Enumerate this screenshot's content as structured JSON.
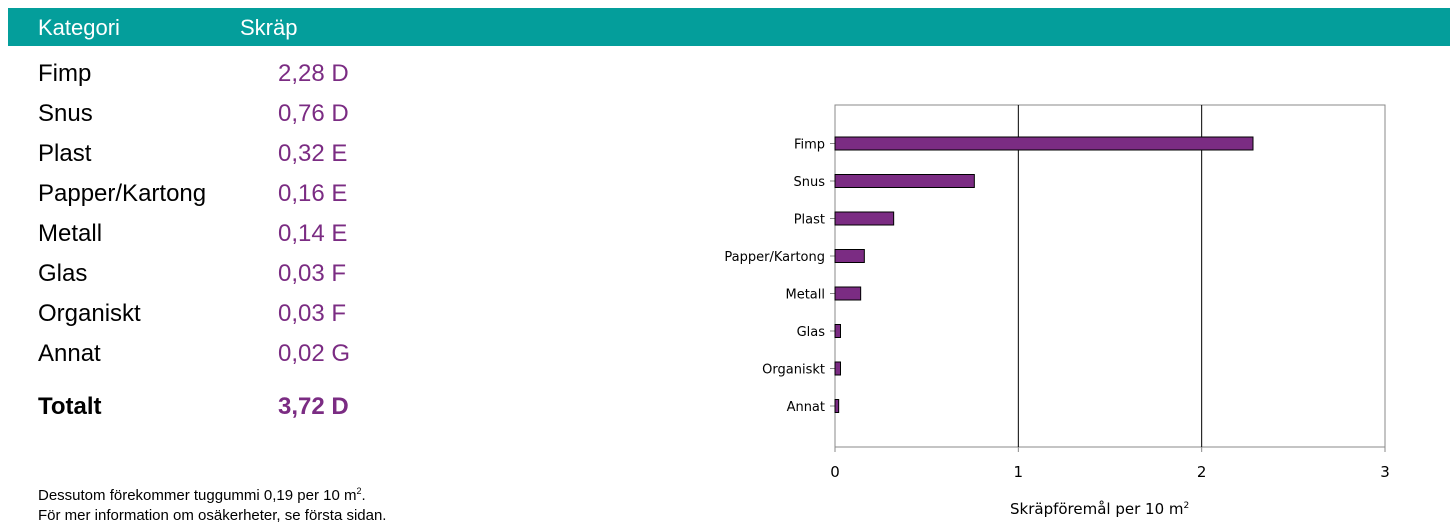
{
  "header": {
    "col_category": "Kategori",
    "col_value": "Skräp"
  },
  "rows": [
    {
      "name": "Fimp",
      "value": "2,28 D"
    },
    {
      "name": "Snus",
      "value": "0,76 D"
    },
    {
      "name": "Plast",
      "value": "0,32 E"
    },
    {
      "name": "Papper/Kartong",
      "value": "0,16 E"
    },
    {
      "name": "Metall",
      "value": "0,14 E"
    },
    {
      "name": "Glas",
      "value": "0,03 F"
    },
    {
      "name": "Organiskt",
      "value": "0,03 F"
    },
    {
      "name": "Annat",
      "value": "0,02 G"
    }
  ],
  "total": {
    "name": "Totalt",
    "value": "3,72 D"
  },
  "footnote": {
    "line1_text": "Dessutom förekommer tuggummi  0,19 per 10 m",
    "line1_sup": "2",
    "line1_end": ".",
    "line2": "För mer information om osäkerheter, se första sidan."
  },
  "colors": {
    "header": "#049e9b",
    "value_text": "#7b2c83",
    "bar": "#7b2c83"
  },
  "chart_data": {
    "type": "bar",
    "orientation": "horizontal",
    "categories": [
      "Fimp",
      "Snus",
      "Plast",
      "Papper/Kartong",
      "Metall",
      "Glas",
      "Organiskt",
      "Annat"
    ],
    "values": [
      2.28,
      0.76,
      0.32,
      0.16,
      0.14,
      0.03,
      0.03,
      0.02
    ],
    "xlabel": "Skräpföremål per 10 m",
    "xlabel_sup": "2",
    "xlim": [
      0,
      3
    ],
    "xticks": [
      "0",
      "1",
      "2",
      "3"
    ],
    "grid": "vertical"
  }
}
